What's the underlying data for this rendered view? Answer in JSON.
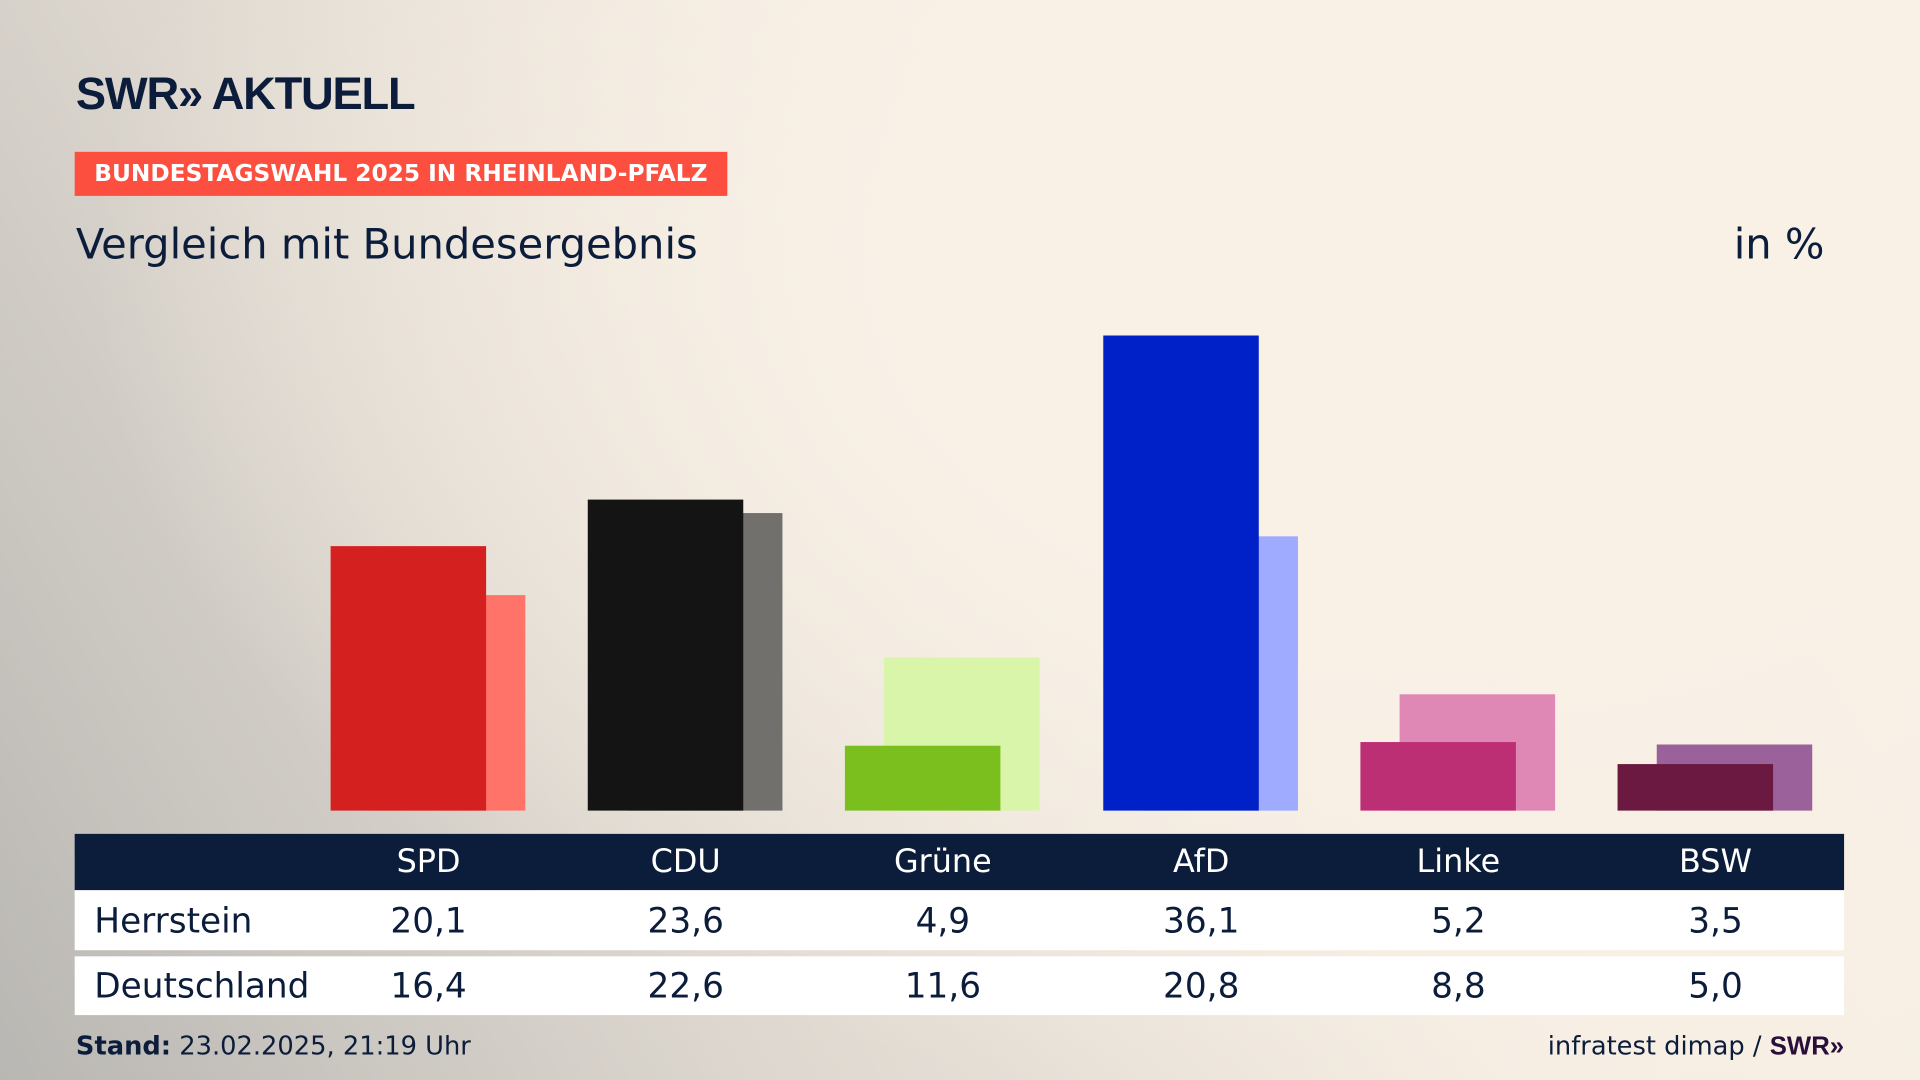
{
  "header": {
    "logo": "SWR» AKTUELL",
    "badge": "BUNDESTAGSWAHL 2025 IN RHEINLAND-PFALZ",
    "title": "Vergleich mit Bundesergebnis",
    "unit": "in %"
  },
  "chart_data": {
    "type": "bar",
    "title": "Vergleich mit Bundesergebnis",
    "ylabel": "in %",
    "categories": [
      "SPD",
      "CDU",
      "Grüne",
      "AfD",
      "Linke",
      "BSW"
    ],
    "series": [
      {
        "name": "Herrstein",
        "values": [
          20.1,
          23.6,
          4.9,
          36.1,
          5.2,
          3.5
        ],
        "colors": [
          "#d52020",
          "#141414",
          "#7abf1e",
          "#0020c8",
          "#bd2f74",
          "#6b1940"
        ]
      },
      {
        "name": "Deutschland",
        "values": [
          16.4,
          22.6,
          11.6,
          20.8,
          8.8,
          5.0
        ],
        "colors": [
          "#ff7369",
          "#72706d",
          "#d9f5a9",
          "#9eabff",
          "#df88b6",
          "#9b619b"
        ]
      }
    ],
    "value_labels": [
      [
        "20,1",
        "23,6",
        "4,9",
        "36,1",
        "5,2",
        "3,5"
      ],
      [
        "16,4",
        "22,6",
        "11,6",
        "20,8",
        "8,8",
        "5,0"
      ]
    ],
    "ylim": [
      0,
      36.1
    ]
  },
  "footer": {
    "stand_label": "Stand:",
    "stand_value": "23.02.2025, 21:19 Uhr",
    "source": "infratest dimap /",
    "source_logo": "SWR»"
  }
}
